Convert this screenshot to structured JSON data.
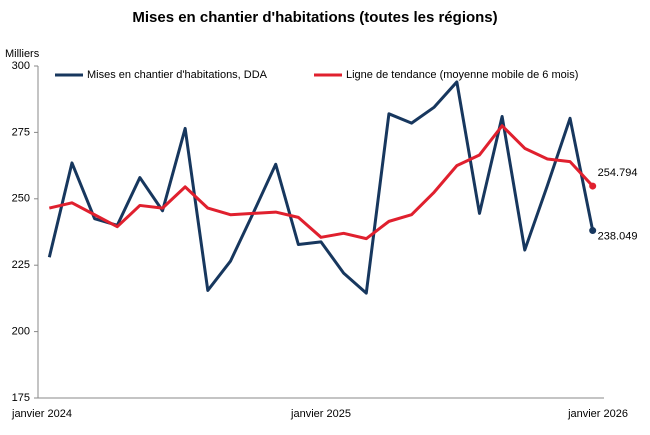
{
  "chart_data": {
    "type": "line",
    "title": "Mises en chantier d'habitations (toutes les régions)",
    "y_label": "Milliers",
    "categories": [
      "janvier 2024",
      null,
      null,
      null,
      null,
      null,
      null,
      null,
      null,
      null,
      null,
      null,
      "janvier 2025",
      null,
      null,
      null,
      null,
      null,
      null,
      null,
      null,
      null,
      null,
      null,
      "janvier 2026"
    ],
    "series": [
      {
        "name": "Mises en chantier d'habitations, DDA",
        "color": "#17375e",
        "values": [
          228,
          263.5,
          242.5,
          240,
          258,
          245.5,
          276.5,
          215.5,
          226.5,
          244.5,
          263,
          232.8,
          233.8,
          222,
          214.5,
          282,
          278.5,
          284.5,
          294,
          244.5,
          281,
          230.7,
          255,
          280.3,
          238.049
        ]
      },
      {
        "name": "Ligne de tendance (moyenne mobile de 6 mois)",
        "color": "#e0202e",
        "values": [
          246.5,
          248.5,
          244,
          239.5,
          247.5,
          246.5,
          254.5,
          246.5,
          244,
          244.5,
          245,
          243,
          235.5,
          237,
          235,
          241.5,
          244,
          252.5,
          262.5,
          266.5,
          277.5,
          269,
          265,
          264,
          254.794
        ]
      }
    ],
    "ylim": [
      175,
      300
    ],
    "yticks": [
      175,
      200,
      225,
      250,
      275,
      300
    ],
    "grid": false
  }
}
